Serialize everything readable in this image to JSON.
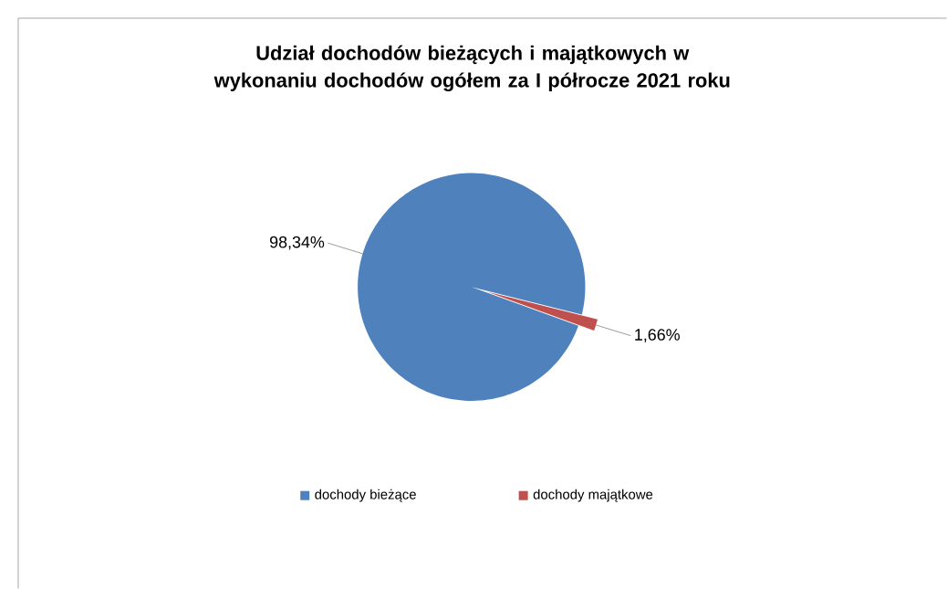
{
  "chart_data": {
    "type": "pie",
    "title": "Udział dochodów bieżących i majątkowych w wykonaniu dochodów ogółem za I półrocze 2021 roku",
    "categories": [
      "dochody bieżące",
      "dochody majątkowe"
    ],
    "values": [
      98.34,
      1.66
    ],
    "colors": [
      "#4f81bd",
      "#c0504d"
    ],
    "value_labels": [
      "98,34%",
      "1,66%"
    ],
    "legend": "bottom"
  }
}
